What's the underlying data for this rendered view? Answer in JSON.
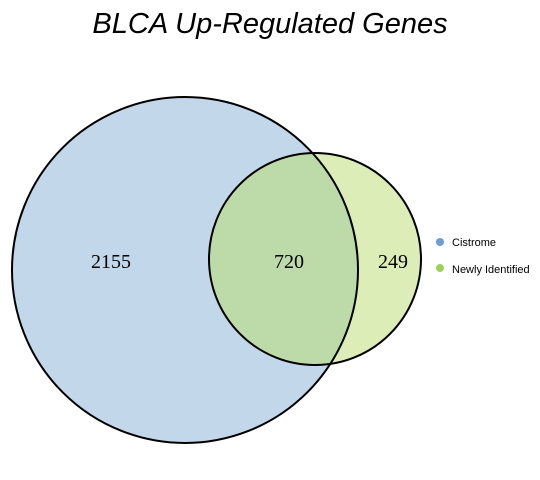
{
  "title": "BLCA Up-Regulated Genes",
  "sets": [
    {
      "name": "Cistrome",
      "legend_color": "#6a9ed3",
      "fill": "#c2d7ea"
    },
    {
      "name": "Newly Identified",
      "legend_color": "#9ed15a",
      "fill": "#dcedb7"
    }
  ],
  "overlap_fill": "#bddaa9",
  "regions": {
    "cistrome_only": "2155",
    "both": "720",
    "newly_only": "249"
  }
}
